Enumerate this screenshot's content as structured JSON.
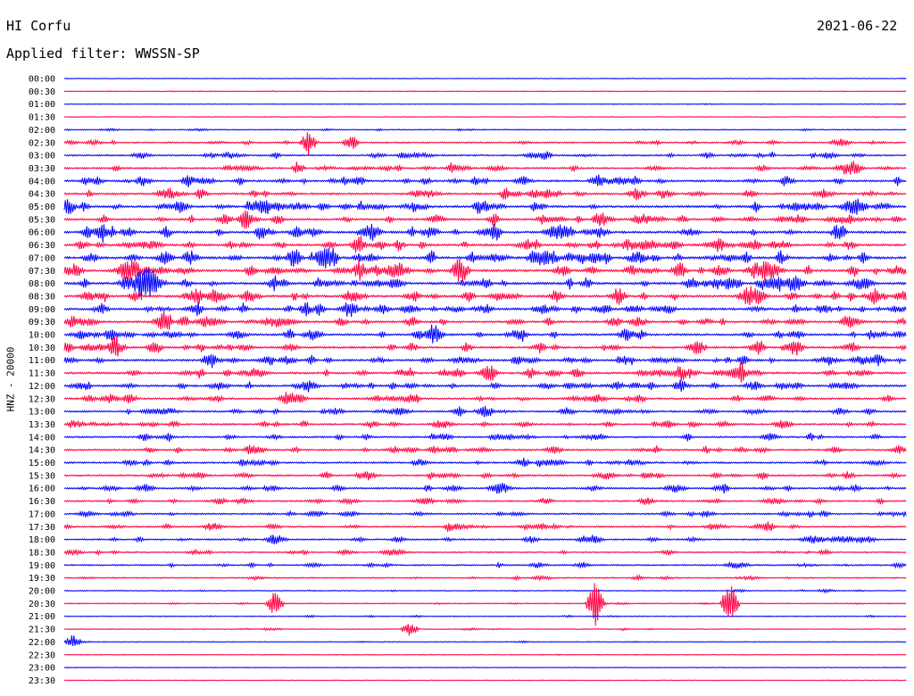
{
  "header": {
    "station": "HI Corfu",
    "date": "2021-06-22",
    "filter": "Applied filter: WWSSN-SP"
  },
  "axis": {
    "channel_label": "HNZ - 20000"
  },
  "colors": {
    "odd": "#0000ff",
    "even": "#ff0040"
  },
  "chart_data": {
    "type": "line",
    "title": "HI Corfu",
    "date": "2021-06-22",
    "filter": "WWSSN-SP",
    "ylabel": "HNZ - 20000",
    "line_interval_minutes": 30,
    "rows": [
      "00:00",
      "00:30",
      "01:00",
      "01:30",
      "02:00",
      "02:30",
      "03:00",
      "03:30",
      "04:00",
      "04:30",
      "05:00",
      "05:30",
      "06:00",
      "06:30",
      "07:00",
      "07:30",
      "08:00",
      "08:30",
      "09:00",
      "09:30",
      "10:00",
      "10:30",
      "11:00",
      "11:30",
      "12:00",
      "12:30",
      "13:00",
      "13:30",
      "14:00",
      "14:30",
      "15:00",
      "15:30",
      "16:00",
      "16:30",
      "17:00",
      "17:30",
      "18:00",
      "18:30",
      "19:00",
      "19:30",
      "20:00",
      "20:30",
      "21:00",
      "21:30",
      "22:00",
      "22:30",
      "23:00",
      "23:30"
    ],
    "activity": [
      0.05,
      0.05,
      0.05,
      0.05,
      0.2,
      0.4,
      0.5,
      0.6,
      0.8,
      0.7,
      0.9,
      0.8,
      0.9,
      0.9,
      1.0,
      1.0,
      1.0,
      0.9,
      0.9,
      0.8,
      0.8,
      0.8,
      0.8,
      0.8,
      0.8,
      0.7,
      0.6,
      0.6,
      0.6,
      0.6,
      0.6,
      0.6,
      0.6,
      0.5,
      0.5,
      0.5,
      0.5,
      0.4,
      0.4,
      0.3,
      0.2,
      0.2,
      0.15,
      0.15,
      0.1,
      0.05,
      0.05,
      0.05
    ],
    "events": [
      {
        "row": 5,
        "pos": 0.29,
        "amp": 14
      },
      {
        "row": 5,
        "pos": 0.34,
        "amp": 10
      },
      {
        "row": 15,
        "pos": 0.47,
        "amp": 12
      },
      {
        "row": 16,
        "pos": 0.09,
        "amp": 14
      },
      {
        "row": 41,
        "pos": 0.25,
        "amp": 14
      },
      {
        "row": 41,
        "pos": 0.63,
        "amp": 28
      },
      {
        "row": 41,
        "pos": 0.79,
        "amp": 28
      },
      {
        "row": 43,
        "pos": 0.41,
        "amp": 8
      },
      {
        "row": 44,
        "pos": 0.01,
        "amp": 8
      }
    ]
  }
}
